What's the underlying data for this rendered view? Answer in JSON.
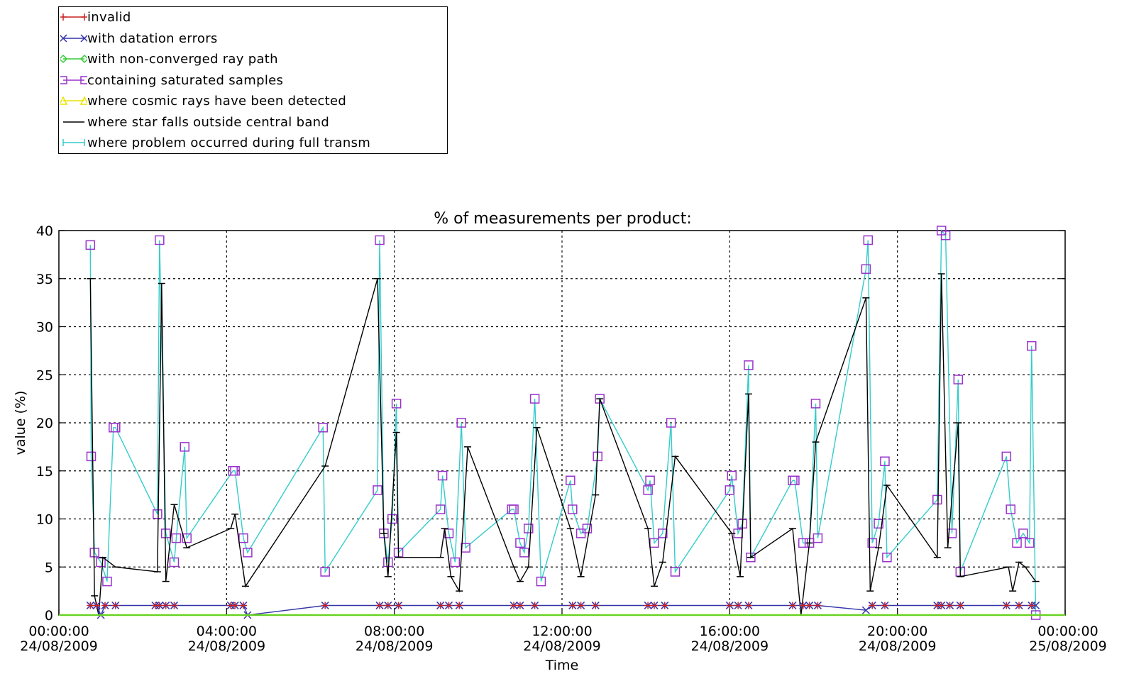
{
  "legend": {
    "entries": [
      {
        "key": "invalid",
        "label": "invalid",
        "color": "#cc2222",
        "marker": "plus"
      },
      {
        "key": "datation",
        "label": "with datation errors",
        "color": "#3333aa",
        "marker": "cross"
      },
      {
        "key": "nonconv",
        "label": "with non-converged ray path",
        "color": "#33cc33",
        "marker": "diamond"
      },
      {
        "key": "saturated",
        "label": "containing saturated samples",
        "color": "#9933cc",
        "marker": "square"
      },
      {
        "key": "cosmic",
        "label": "where cosmic rays have been detected",
        "color": "#e6e600",
        "marker": "triangle"
      },
      {
        "key": "outside",
        "label": "where star falls outside central band",
        "color": "#000000",
        "marker": "line"
      },
      {
        "key": "fulltransm",
        "label": "where problem occurred during full transm",
        "color": "#33cccc",
        "marker": "bar"
      }
    ]
  },
  "chart_data": {
    "type": "line",
    "title": "% of measurements per product:",
    "xlabel": "Time",
    "ylabel": "value (%)",
    "ylim": [
      0,
      40
    ],
    "xlim": [
      0,
      24
    ],
    "x_unit": "hours since 00:00:00 24/08/2009",
    "grid": true,
    "legend_position": "top-left, outside plot",
    "yticks": [
      "0",
      "5",
      "10",
      "15",
      "20",
      "25",
      "30",
      "35",
      "40"
    ],
    "xticks": [
      {
        "time": "00:00:00",
        "date": "24/08/2009"
      },
      {
        "time": "04:00:00",
        "date": "24/08/2009"
      },
      {
        "time": "08:00:00",
        "date": "24/08/2009"
      },
      {
        "time": "12:00:00",
        "date": "24/08/2009"
      },
      {
        "time": "16:00:00",
        "date": "24/08/2009"
      },
      {
        "time": "20:00:00",
        "date": "24/08/2009"
      },
      {
        "time": "00:00:00",
        "date": "25/08/2009"
      }
    ],
    "series": [
      {
        "name": "where problem occurred during full transm",
        "color": "#33cccc",
        "x": [
          0.75,
          0.77,
          0.85,
          1.0,
          1.15,
          1.3,
          1.35,
          2.35,
          2.4,
          2.55,
          2.75,
          2.8,
          3.0,
          3.05,
          4.15,
          4.2,
          4.4,
          4.5,
          6.3,
          6.35,
          7.6,
          7.65,
          7.75,
          7.85,
          7.95,
          8.05,
          8.1,
          9.1,
          9.15,
          9.3,
          9.45,
          9.6,
          9.7,
          10.8,
          10.85,
          11.0,
          11.1,
          11.2,
          11.35,
          11.5,
          12.2,
          12.25,
          12.45,
          12.6,
          12.85,
          12.9,
          14.05,
          14.1,
          14.2,
          14.4,
          14.6,
          14.7,
          16.0,
          16.05,
          16.2,
          16.3,
          16.45,
          16.5,
          17.5,
          17.55,
          17.75,
          17.9,
          18.05,
          18.1,
          19.25,
          19.3,
          19.4,
          19.55,
          19.7,
          19.75,
          20.95,
          21.05,
          21.15,
          21.3,
          21.45,
          21.5,
          22.6,
          22.7,
          22.85,
          23.0,
          23.15,
          23.2,
          23.3
        ],
        "values": [
          38.5,
          16.5,
          6.5,
          5.5,
          3.5,
          19.5,
          19.5,
          10.5,
          39.0,
          8.5,
          5.5,
          8.0,
          17.5,
          8.0,
          15.0,
          15.0,
          8.0,
          6.5,
          19.5,
          4.5,
          13.0,
          39.0,
          8.5,
          5.5,
          10.0,
          22.0,
          6.5,
          11.0,
          14.5,
          8.5,
          5.5,
          20.0,
          7.0,
          11.0,
          11.0,
          7.5,
          6.5,
          9.0,
          22.5,
          3.5,
          14.0,
          11.0,
          8.5,
          9.0,
          16.5,
          22.5,
          13.0,
          14.0,
          7.5,
          8.5,
          20.0,
          4.5,
          13.0,
          14.5,
          8.5,
          9.5,
          26.0,
          6.0,
          14.0,
          14.0,
          7.5,
          7.5,
          22.0,
          8.0,
          36.0,
          39.0,
          7.5,
          9.5,
          16.0,
          6.0,
          12.0,
          40.0,
          39.5,
          8.5,
          24.5,
          4.5,
          16.5,
          11.0,
          7.5,
          8.5,
          7.5,
          28.0,
          0.0
        ]
      },
      {
        "name": "where star falls outside central band",
        "color": "#000000",
        "x": [
          0.75,
          0.85,
          0.95,
          1.05,
          1.35,
          2.35,
          2.45,
          2.55,
          2.75,
          3.05,
          4.1,
          4.2,
          4.45,
          6.35,
          7.6,
          7.75,
          7.85,
          8.05,
          8.1,
          9.1,
          9.2,
          9.35,
          9.55,
          9.75,
          10.85,
          11.0,
          11.2,
          11.4,
          12.2,
          12.45,
          12.8,
          12.9,
          14.05,
          14.2,
          14.4,
          14.7,
          16.05,
          16.25,
          16.45,
          16.5,
          17.5,
          17.7,
          17.9,
          18.05,
          19.25,
          19.35,
          19.55,
          19.75,
          20.95,
          21.05,
          21.2,
          21.45,
          21.5,
          22.65,
          22.75,
          22.9,
          23.05,
          23.3
        ],
        "values": [
          35.0,
          2.0,
          0.0,
          6.0,
          5.0,
          4.5,
          34.5,
          3.5,
          11.5,
          7.0,
          9.0,
          10.5,
          3.0,
          15.5,
          35.0,
          8.5,
          4.0,
          19.0,
          6.0,
          6.0,
          9.0,
          4.0,
          2.5,
          17.5,
          5.0,
          3.5,
          5.0,
          19.5,
          9.0,
          4.0,
          12.5,
          22.5,
          9.0,
          3.0,
          5.5,
          16.5,
          8.5,
          4.0,
          23.0,
          6.0,
          9.0,
          0.0,
          7.5,
          18.0,
          33.0,
          2.5,
          7.0,
          13.5,
          6.0,
          35.5,
          7.0,
          20.0,
          4.0,
          5.0,
          2.5,
          5.5,
          5.0,
          3.5
        ]
      },
      {
        "name": "with datation errors",
        "color": "#3333aa",
        "x": [
          0.75,
          0.9,
          1.0,
          1.1,
          1.35,
          2.3,
          2.4,
          2.55,
          2.75,
          4.1,
          4.2,
          4.4,
          4.5,
          6.35,
          7.65,
          7.85,
          8.1,
          9.1,
          9.3,
          9.55,
          10.85,
          11.0,
          11.35,
          12.25,
          12.45,
          12.8,
          14.05,
          14.2,
          14.45,
          16.0,
          16.2,
          16.45,
          17.5,
          17.75,
          17.9,
          18.1,
          19.25,
          19.4,
          19.7,
          20.95,
          21.05,
          21.25,
          21.5,
          22.6,
          22.9,
          23.2,
          23.3
        ],
        "values": [
          1.0,
          1.0,
          0.0,
          1.0,
          1.0,
          1.0,
          1.0,
          1.0,
          1.0,
          1.0,
          1.0,
          1.0,
          0.0,
          1.0,
          1.0,
          1.0,
          1.0,
          1.0,
          1.0,
          1.0,
          1.0,
          1.0,
          1.0,
          1.0,
          1.0,
          1.0,
          1.0,
          1.0,
          1.0,
          1.0,
          1.0,
          1.0,
          1.0,
          1.0,
          1.0,
          1.0,
          0.5,
          1.0,
          1.0,
          1.0,
          1.0,
          1.0,
          1.0,
          1.0,
          1.0,
          1.0,
          1.0
        ]
      },
      {
        "name": "where cosmic rays have been detected",
        "color": "#e6e600",
        "x": [
          0.0,
          24.0
        ],
        "values": [
          0.0,
          0.0
        ]
      },
      {
        "name": "with non-converged ray path",
        "color": "#33cc33",
        "x": [
          0.0,
          24.0
        ],
        "values": [
          0.0,
          0.0
        ]
      },
      {
        "name": "invalid",
        "color": "#cc2222",
        "x": [
          0.75,
          0.9,
          1.1,
          1.35,
          2.3,
          2.4,
          2.55,
          2.75,
          4.1,
          4.2,
          4.4,
          6.35,
          7.65,
          7.85,
          8.1,
          9.1,
          9.3,
          9.55,
          10.85,
          11.0,
          11.35,
          12.25,
          12.45,
          12.8,
          14.05,
          14.2,
          14.45,
          16.0,
          16.2,
          16.45,
          17.5,
          17.75,
          17.9,
          18.1,
          19.4,
          19.7,
          20.95,
          21.05,
          21.25,
          21.5,
          22.6,
          22.9,
          23.2
        ],
        "values": [
          1.0,
          1.0,
          1.0,
          1.0,
          1.0,
          1.0,
          1.0,
          1.0,
          1.0,
          1.0,
          1.0,
          1.0,
          1.0,
          1.0,
          1.0,
          1.0,
          1.0,
          1.0,
          1.0,
          1.0,
          1.0,
          1.0,
          1.0,
          1.0,
          1.0,
          1.0,
          1.0,
          1.0,
          1.0,
          1.0,
          1.0,
          1.0,
          1.0,
          1.0,
          1.0,
          1.0,
          1.0,
          1.0,
          1.0,
          1.0,
          1.0,
          1.0,
          1.0
        ]
      }
    ]
  }
}
